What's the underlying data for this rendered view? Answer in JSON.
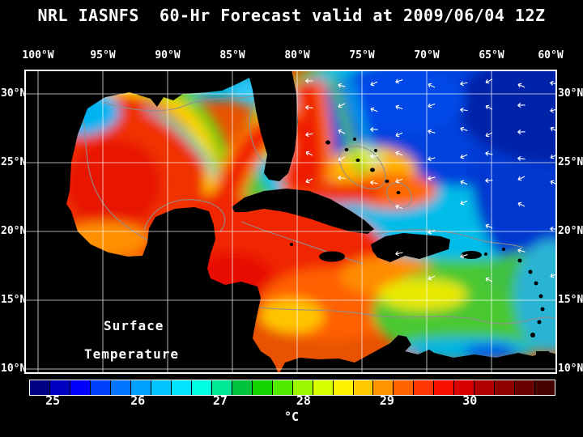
{
  "title": "NRL IASNFS  60-Hr Forecast valid at 2009/06/04 12Z",
  "map": {
    "top_axis": [
      "100°W",
      "95°W",
      "90°W",
      "85°W",
      "80°W",
      "75°W",
      "70°W",
      "65°W",
      "60°W"
    ],
    "left_axis": [
      "30°N",
      "25°N",
      "20°N",
      "15°N",
      "10°N"
    ],
    "right_axis": [
      "30°N",
      "25°N",
      "20°N",
      "15°N",
      "10°N"
    ],
    "annotation": {
      "line1": "Surface",
      "line2": "Temperature"
    }
  },
  "colorbar": {
    "unit": "°C",
    "segments": [
      "#000085",
      "#0000c0",
      "#0000ff",
      "#0040ff",
      "#0075ff",
      "#00a0ff",
      "#00c3ff",
      "#00e4ff",
      "#00ffe1",
      "#00e896",
      "#00c33c",
      "#12d400",
      "#52ea00",
      "#9cf800",
      "#d8ff00",
      "#fff200",
      "#ffc800",
      "#ff9600",
      "#ff6400",
      "#ff3700",
      "#fa0f00",
      "#d80000",
      "#b00000",
      "#8c0000",
      "#680000",
      "#460000"
    ],
    "ticks": [
      {
        "label": "25",
        "pos": 0.045
      },
      {
        "label": "26",
        "pos": 0.207
      },
      {
        "label": "27",
        "pos": 0.364
      },
      {
        "label": "28",
        "pos": 0.523
      },
      {
        "label": "29",
        "pos": 0.682
      },
      {
        "label": "30",
        "pos": 0.84
      }
    ]
  },
  "colors": {
    "background": "#000000",
    "text": "#ffffff",
    "grid": "#ffffff",
    "land": "#000000",
    "contour": "#8f8f8f",
    "frame": "#ffffff"
  }
}
